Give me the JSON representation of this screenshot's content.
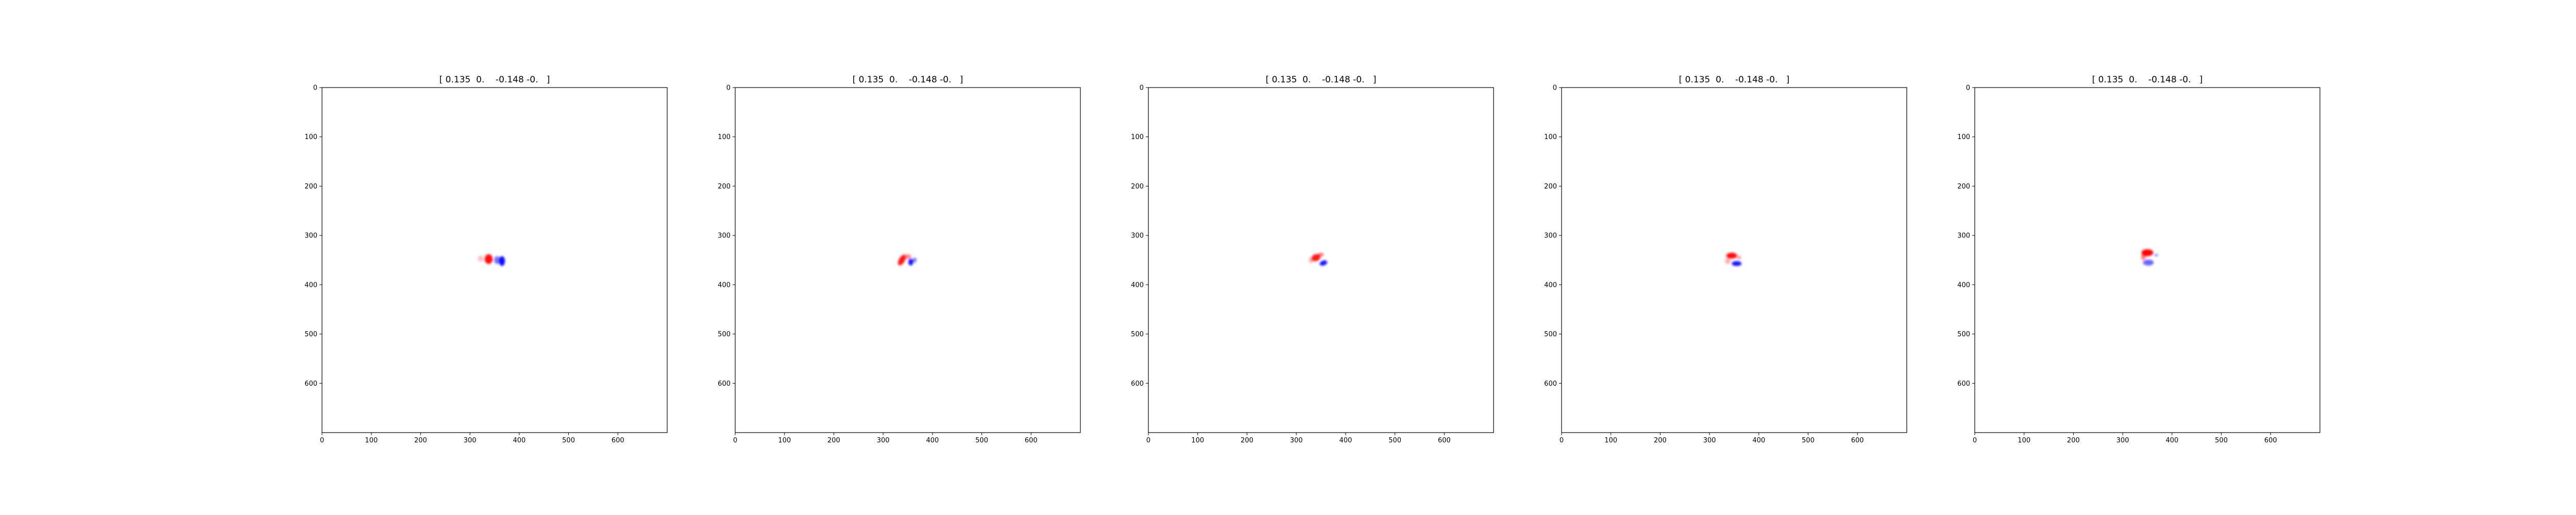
{
  "chart_data": [
    {
      "type": "heatmap",
      "title": "[ 0.135  0.    -0.148 -0.   ]",
      "x_ticks": [
        0,
        100,
        200,
        300,
        400,
        500,
        600
      ],
      "y_ticks": [
        0,
        100,
        200,
        300,
        400,
        500,
        600
      ],
      "xlim": [
        0,
        700
      ],
      "ylim": [
        700,
        0
      ],
      "colormap": "bwr",
      "colors": {
        "positive": "#ff0000",
        "negative": "#0000ff",
        "background": "#ffffff"
      },
      "features": [
        {
          "x": 338,
          "y": 348,
          "sx": 8,
          "sy": 10,
          "value": 0.95,
          "rotation": 0
        },
        {
          "x": 355,
          "y": 350,
          "sx": 6,
          "sy": 8,
          "value": -0.55,
          "rotation": 0
        },
        {
          "x": 365,
          "y": 352,
          "sx": 6,
          "sy": 10,
          "value": -0.95,
          "rotation": 0
        },
        {
          "x": 322,
          "y": 347,
          "sx": 6,
          "sy": 6,
          "value": 0.25,
          "rotation": 0
        }
      ]
    },
    {
      "type": "heatmap",
      "title": "[ 0.135  0.    -0.148 -0.   ]",
      "x_ticks": [
        0,
        100,
        200,
        300,
        400,
        500,
        600
      ],
      "y_ticks": [
        0,
        100,
        200,
        300,
        400,
        500,
        600
      ],
      "xlim": [
        0,
        700
      ],
      "ylim": [
        700,
        0
      ],
      "colormap": "bwr",
      "colors": {
        "positive": "#ff0000",
        "negative": "#0000ff",
        "background": "#ffffff"
      },
      "features": [
        {
          "x": 338,
          "y": 350,
          "sx": 6,
          "sy": 12,
          "value": 0.9,
          "rotation": 30
        },
        {
          "x": 350,
          "y": 343,
          "sx": 7,
          "sy": 5,
          "value": 0.45,
          "rotation": 0
        },
        {
          "x": 356,
          "y": 354,
          "sx": 5,
          "sy": 7,
          "value": -0.9,
          "rotation": 0
        },
        {
          "x": 364,
          "y": 350,
          "sx": 4,
          "sy": 5,
          "value": -0.5,
          "rotation": 0
        }
      ]
    },
    {
      "type": "heatmap",
      "title": "[ 0.135  0.    -0.148 -0.   ]",
      "x_ticks": [
        0,
        100,
        200,
        300,
        400,
        500,
        600
      ],
      "y_ticks": [
        0,
        100,
        200,
        300,
        400,
        500,
        600
      ],
      "xlim": [
        0,
        700
      ],
      "ylim": [
        700,
        0
      ],
      "colormap": "bwr",
      "colors": {
        "positive": "#ff0000",
        "negative": "#0000ff",
        "background": "#ffffff"
      },
      "features": [
        {
          "x": 340,
          "y": 345,
          "sx": 9,
          "sy": 7,
          "value": 0.9,
          "rotation": -20
        },
        {
          "x": 350,
          "y": 339,
          "sx": 6,
          "sy": 4,
          "value": 0.5,
          "rotation": 0
        },
        {
          "x": 355,
          "y": 356,
          "sx": 8,
          "sy": 5,
          "value": -0.9,
          "rotation": -20
        },
        {
          "x": 330,
          "y": 350,
          "sx": 5,
          "sy": 6,
          "value": 0.3,
          "rotation": 0
        }
      ]
    },
    {
      "type": "heatmap",
      "title": "[ 0.135  0.    -0.148 -0.   ]",
      "x_ticks": [
        0,
        100,
        200,
        300,
        400,
        500,
        600
      ],
      "y_ticks": [
        0,
        100,
        200,
        300,
        400,
        500,
        600
      ],
      "xlim": [
        0,
        700
      ],
      "ylim": [
        700,
        0
      ],
      "colormap": "bwr",
      "colors": {
        "positive": "#ff0000",
        "negative": "#0000ff",
        "background": "#ffffff"
      },
      "features": [
        {
          "x": 345,
          "y": 341,
          "sx": 11,
          "sy": 6,
          "value": 0.95,
          "rotation": 0
        },
        {
          "x": 355,
          "y": 357,
          "sx": 10,
          "sy": 5,
          "value": -0.9,
          "rotation": 0
        },
        {
          "x": 337,
          "y": 352,
          "sx": 6,
          "sy": 6,
          "value": 0.3,
          "rotation": 0
        },
        {
          "x": 360,
          "y": 345,
          "sx": 4,
          "sy": 4,
          "value": 0.4,
          "rotation": 0
        }
      ]
    },
    {
      "type": "heatmap",
      "title": "[ 0.135  0.    -0.148 -0.   ]",
      "x_ticks": [
        0,
        100,
        200,
        300,
        400,
        500,
        600
      ],
      "y_ticks": [
        0,
        100,
        200,
        300,
        400,
        500,
        600
      ],
      "xlim": [
        0,
        700
      ],
      "ylim": [
        700,
        0
      ],
      "colormap": "bwr",
      "colors": {
        "positive": "#ff0000",
        "negative": "#0000ff",
        "background": "#ffffff"
      },
      "features": [
        {
          "x": 350,
          "y": 335,
          "sx": 12,
          "sy": 7,
          "value": 1.0,
          "rotation": 0
        },
        {
          "x": 352,
          "y": 355,
          "sx": 11,
          "sy": 6,
          "value": -0.6,
          "rotation": 0
        },
        {
          "x": 342,
          "y": 344,
          "sx": 5,
          "sy": 6,
          "value": 0.5,
          "rotation": 0
        },
        {
          "x": 368,
          "y": 340,
          "sx": 4,
          "sy": 3,
          "value": -0.4,
          "rotation": 0
        }
      ]
    }
  ]
}
